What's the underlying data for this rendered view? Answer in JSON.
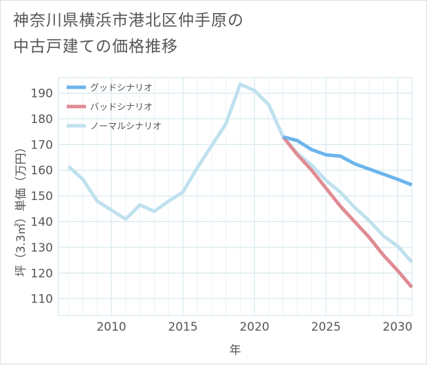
{
  "title_lines": [
    "神奈川県横浜市港北区仲手原の",
    "中古戸建ての価格推移"
  ],
  "chart_data": {
    "type": "line",
    "title": "神奈川県横浜市港北区仲手原の中古戸建ての価格推移",
    "xlabel": "年",
    "ylabel": "坪（3.3㎡）単価（万円）",
    "xlim": [
      2006.3,
      2031
    ],
    "ylim": [
      103.5,
      196
    ],
    "xticks": [
      2010,
      2015,
      2020,
      2025,
      2030
    ],
    "yticks": [
      110,
      120,
      130,
      140,
      150,
      160,
      170,
      180,
      190
    ],
    "grid": true,
    "legend_position": "top-left",
    "series": [
      {
        "name": "グッドシナリオ",
        "color": "#6cb4ec",
        "x": [
          2022,
          2023,
          2024,
          2025,
          2026,
          2027,
          2028,
          2029,
          2030,
          2031
        ],
        "values": [
          173,
          171.5,
          168,
          166,
          165.5,
          162.5,
          160.5,
          158.5,
          156.5,
          154.3
        ]
      },
      {
        "name": "バッドシナリオ",
        "color": "#e08b93",
        "x": [
          2022,
          2023,
          2024,
          2025,
          2026,
          2027,
          2028,
          2029,
          2030,
          2031
        ],
        "values": [
          173,
          166,
          160,
          153,
          146,
          140,
          134,
          127,
          121,
          114.5
        ]
      },
      {
        "name": "ノーマルシナリオ",
        "color": "#bfe1ee",
        "x": [
          2007,
          2008,
          2009,
          2010,
          2011,
          2012,
          2013,
          2014,
          2015,
          2016,
          2017,
          2018,
          2019,
          2020,
          2021,
          2022,
          2023,
          2024,
          2025,
          2026,
          2027,
          2028,
          2029,
          2030,
          2031
        ],
        "values": [
          161.5,
          156.5,
          148,
          144.5,
          141,
          146.5,
          144,
          148,
          151.5,
          161,
          169.5,
          178,
          193.5,
          191,
          185.5,
          173,
          166.5,
          162,
          156,
          151.5,
          145.5,
          140.5,
          134.5,
          130.5,
          124.3
        ]
      }
    ]
  }
}
